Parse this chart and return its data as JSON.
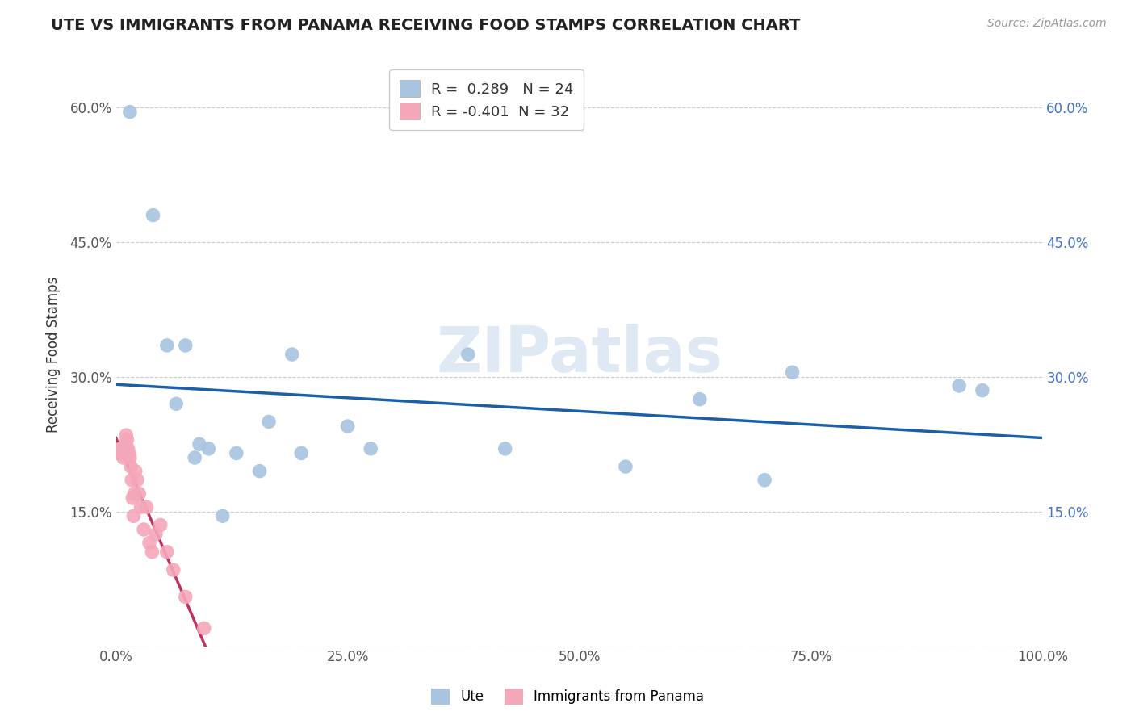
{
  "title": "UTE VS IMMIGRANTS FROM PANAMA RECEIVING FOOD STAMPS CORRELATION CHART",
  "source": "Source: ZipAtlas.com",
  "ylabel": "Receiving Food Stamps",
  "watermark": "ZIPatlas",
  "xlim": [
    0,
    1.0
  ],
  "ylim": [
    0,
    0.65
  ],
  "xticks": [
    0.0,
    0.25,
    0.5,
    0.75,
    1.0
  ],
  "xtick_labels": [
    "0.0%",
    "25.0%",
    "50.0%",
    "75.0%",
    "100.0%"
  ],
  "yticks": [
    0.0,
    0.15,
    0.3,
    0.45,
    0.6
  ],
  "ytick_labels": [
    "",
    "15.0%",
    "30.0%",
    "45.0%",
    "60.0%"
  ],
  "legend_r_ute": "0.289",
  "legend_n_ute": "24",
  "legend_r_panama": "-0.401",
  "legend_n_panama": "32",
  "ute_color": "#a8c4e0",
  "panama_color": "#f4a7b9",
  "ute_line_color": "#1a5fa8",
  "panama_line_color": "#c03060",
  "background_color": "#ffffff",
  "grid_color": "#cccccc",
  "title_color": "#222222",
  "right_tick_color": "#4472c4",
  "ute_x": [
    0.015,
    0.04,
    0.055,
    0.065,
    0.075,
    0.085,
    0.09,
    0.1,
    0.115,
    0.13,
    0.155,
    0.165,
    0.19,
    0.2,
    0.25,
    0.275,
    0.38,
    0.55,
    0.63,
    0.7,
    0.73,
    0.91,
    0.935,
    0.42
  ],
  "ute_y": [
    0.595,
    0.48,
    0.335,
    0.27,
    0.335,
    0.21,
    0.225,
    0.22,
    0.145,
    0.215,
    0.195,
    0.25,
    0.325,
    0.215,
    0.245,
    0.22,
    0.325,
    0.2,
    0.275,
    0.185,
    0.305,
    0.29,
    0.285,
    0.22
  ],
  "panama_x": [
    0.003,
    0.004,
    0.005,
    0.006,
    0.007,
    0.008,
    0.009,
    0.01,
    0.011,
    0.012,
    0.013,
    0.014,
    0.015,
    0.016,
    0.017,
    0.018,
    0.019,
    0.02,
    0.021,
    0.023,
    0.025,
    0.027,
    0.03,
    0.033,
    0.036,
    0.039,
    0.043,
    0.048,
    0.055,
    0.062,
    0.075,
    0.095
  ],
  "panama_y": [
    0.215,
    0.215,
    0.22,
    0.22,
    0.215,
    0.21,
    0.22,
    0.225,
    0.235,
    0.23,
    0.22,
    0.215,
    0.21,
    0.2,
    0.185,
    0.165,
    0.145,
    0.17,
    0.195,
    0.185,
    0.17,
    0.155,
    0.13,
    0.155,
    0.115,
    0.105,
    0.125,
    0.135,
    0.105,
    0.085,
    0.055,
    0.02
  ]
}
